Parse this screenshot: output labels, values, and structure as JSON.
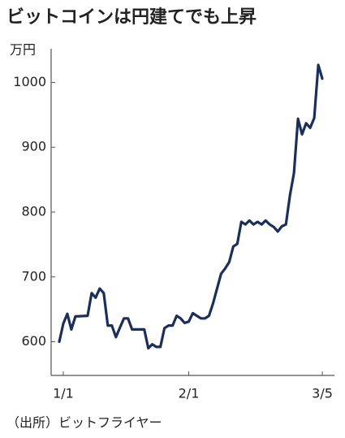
{
  "chart_data": {
    "type": "line",
    "title": "ビットコインは円建てでも上昇",
    "y_unit": "万円",
    "source": "（出所）ビットフライヤー",
    "color": "#1b2f5c",
    "x": [
      -1,
      0,
      1,
      2,
      3,
      6,
      7,
      8,
      9,
      10,
      11,
      12,
      13,
      14,
      15,
      16,
      17,
      20,
      21,
      22,
      23,
      24,
      25,
      26,
      27,
      28,
      29,
      30,
      31,
      32,
      33,
      34,
      35,
      36,
      37,
      38,
      39,
      40,
      41,
      42,
      43,
      44,
      45,
      46,
      47,
      48,
      49,
      50,
      51,
      52,
      53,
      54,
      55,
      56,
      57,
      58,
      59,
      60,
      61,
      62,
      63,
      64
    ],
    "values": [
      600,
      628,
      643,
      619,
      639,
      640,
      675,
      668,
      682,
      675,
      625,
      625,
      607,
      622,
      636,
      636,
      619,
      619,
      590,
      596,
      592,
      592,
      621,
      625,
      625,
      640,
      636,
      629,
      631,
      644,
      640,
      636,
      636,
      640,
      659,
      682,
      705,
      713,
      723,
      747,
      751,
      785,
      781,
      787,
      781,
      785,
      781,
      787,
      781,
      777,
      770,
      778,
      781,
      826,
      860,
      944,
      920,
      937,
      930,
      945,
      1027,
      1006
    ],
    "xlim": [
      -3,
      67
    ],
    "xticks": [
      {
        "value": 0,
        "label": "1/1"
      },
      {
        "value": 31,
        "label": "2/1"
      },
      {
        "value": 64,
        "label": "3/5"
      }
    ],
    "ylim": [
      548,
      1052
    ],
    "yticks": [
      600,
      700,
      800,
      900,
      1000
    ]
  }
}
